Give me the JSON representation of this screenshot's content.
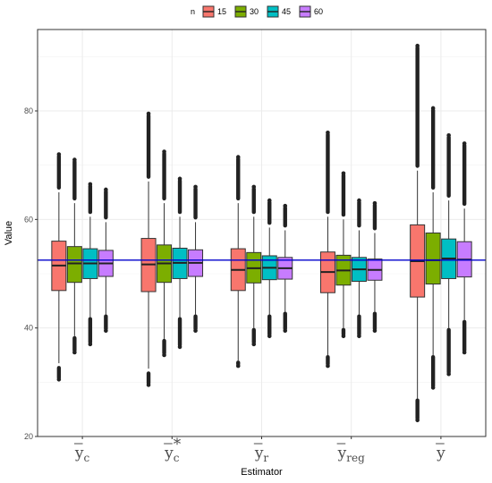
{
  "chart_data": {
    "type": "boxplot",
    "xlabel": "Estimator",
    "ylabel": "Value",
    "ylim": [
      20,
      95
    ],
    "yticks": [
      20,
      40,
      60,
      80
    ],
    "grid": true,
    "legend": {
      "title": "n",
      "position": "top",
      "entries": [
        "15",
        "30",
        "45",
        "60"
      ]
    },
    "colors": [
      "#F8766D",
      "#7CAE00",
      "#00BFC4",
      "#C77CFF"
    ],
    "reference_line": {
      "value": 52.5,
      "color": "#0000CC"
    },
    "categories": [
      {
        "base": "y",
        "sub": "c",
        "sup": ""
      },
      {
        "base": "y",
        "sub": "c",
        "sup": "*"
      },
      {
        "base": "y",
        "sub": "r",
        "sup": ""
      },
      {
        "base": "y",
        "sub": "reg",
        "sup": ""
      },
      {
        "base": "y",
        "sub": "",
        "sup": ""
      }
    ],
    "series": [
      {
        "name": "15",
        "boxes": [
          {
            "wl": 33.5,
            "q1": 46.9,
            "med": 51.5,
            "q3": 56.0,
            "wh": 65.0,
            "out_low": [
              30.5,
              33.0
            ],
            "out_high": [
              65.5,
              72.0
            ]
          },
          {
            "wl": 32.5,
            "q1": 46.7,
            "med": 51.7,
            "q3": 56.5,
            "wh": 67.0,
            "out_low": [
              29.5,
              32.0
            ],
            "out_high": [
              67.5,
              79.5
            ]
          },
          {
            "wl": 34.0,
            "q1": 46.9,
            "med": 50.7,
            "q3": 54.6,
            "wh": 63.0,
            "out_low": [
              33.0,
              34.0
            ],
            "out_high": [
              63.5,
              71.5
            ]
          },
          {
            "wl": 35.0,
            "q1": 46.5,
            "med": 50.3,
            "q3": 54.0,
            "wh": 60.5,
            "out_low": [
              33.0,
              35.0
            ],
            "out_high": [
              61.0,
              76.0
            ]
          },
          {
            "wl": 27.0,
            "q1": 45.7,
            "med": 52.3,
            "q3": 59.0,
            "wh": 69.0,
            "out_low": [
              23.0,
              27.0
            ],
            "out_high": [
              69.5,
              92.0
            ]
          }
        ]
      },
      {
        "name": "30",
        "boxes": [
          {
            "wl": 38.5,
            "q1": 48.4,
            "med": 51.9,
            "q3": 55.0,
            "wh": 63.0,
            "out_low": [
              35.5,
              38.5
            ],
            "out_high": [
              63.5,
              71.0
            ]
          },
          {
            "wl": 38.0,
            "q1": 48.4,
            "med": 51.9,
            "q3": 55.3,
            "wh": 63.0,
            "out_low": [
              35.0,
              38.0
            ],
            "out_high": [
              63.5,
              72.5
            ]
          },
          {
            "wl": 40.0,
            "q1": 48.3,
            "med": 51.0,
            "q3": 53.9,
            "wh": 60.5,
            "out_low": [
              37.0,
              40.0
            ],
            "out_high": [
              61.0,
              66.0
            ]
          },
          {
            "wl": 40.0,
            "q1": 47.9,
            "med": 50.6,
            "q3": 53.4,
            "wh": 60.0,
            "out_low": [
              38.5,
              40.0
            ],
            "out_high": [
              60.5,
              68.5
            ]
          },
          {
            "wl": 35.0,
            "q1": 48.1,
            "med": 52.5,
            "q3": 57.5,
            "wh": 65.0,
            "out_low": [
              29.0,
              35.0
            ],
            "out_high": [
              65.5,
              80.5
            ]
          }
        ]
      },
      {
        "name": "45",
        "boxes": [
          {
            "wl": 42.0,
            "q1": 49.1,
            "med": 51.9,
            "q3": 54.6,
            "wh": 60.5,
            "out_low": [
              37.0,
              42.0
            ],
            "out_high": [
              61.0,
              66.5
            ]
          },
          {
            "wl": 42.0,
            "q1": 49.1,
            "med": 52.0,
            "q3": 54.7,
            "wh": 60.5,
            "out_low": [
              36.5,
              42.0
            ],
            "out_high": [
              61.0,
              67.5
            ]
          },
          {
            "wl": 42.5,
            "q1": 48.9,
            "med": 51.1,
            "q3": 53.3,
            "wh": 58.5,
            "out_low": [
              38.5,
              42.5
            ],
            "out_high": [
              59.0,
              63.5
            ]
          },
          {
            "wl": 42.5,
            "q1": 48.6,
            "med": 50.8,
            "q3": 53.0,
            "wh": 58.0,
            "out_low": [
              38.5,
              42.5
            ],
            "out_high": [
              58.5,
              63.5
            ]
          },
          {
            "wl": 40.0,
            "q1": 49.1,
            "med": 52.8,
            "q3": 56.4,
            "wh": 63.5,
            "out_low": [
              31.5,
              40.0
            ],
            "out_high": [
              64.0,
              75.5
            ]
          }
        ]
      },
      {
        "name": "60",
        "boxes": [
          {
            "wl": 42.5,
            "q1": 49.5,
            "med": 51.9,
            "q3": 54.3,
            "wh": 59.5,
            "out_low": [
              39.5,
              42.5
            ],
            "out_high": [
              60.0,
              65.5
            ]
          },
          {
            "wl": 42.5,
            "q1": 49.5,
            "med": 52.0,
            "q3": 54.4,
            "wh": 59.5,
            "out_low": [
              39.5,
              42.5
            ],
            "out_high": [
              60.0,
              66.0
            ]
          },
          {
            "wl": 43.0,
            "q1": 49.0,
            "med": 51.0,
            "q3": 53.0,
            "wh": 58.0,
            "out_low": [
              39.5,
              43.0
            ],
            "out_high": [
              58.5,
              62.5
            ]
          },
          {
            "wl": 43.0,
            "q1": 48.8,
            "med": 50.7,
            "q3": 52.7,
            "wh": 57.5,
            "out_low": [
              39.5,
              43.0
            ],
            "out_high": [
              58.0,
              63.0
            ]
          },
          {
            "wl": 41.5,
            "q1": 49.4,
            "med": 52.6,
            "q3": 55.9,
            "wh": 62.0,
            "out_low": [
              35.5,
              41.5
            ],
            "out_high": [
              62.5,
              74.0
            ]
          }
        ]
      }
    ]
  }
}
